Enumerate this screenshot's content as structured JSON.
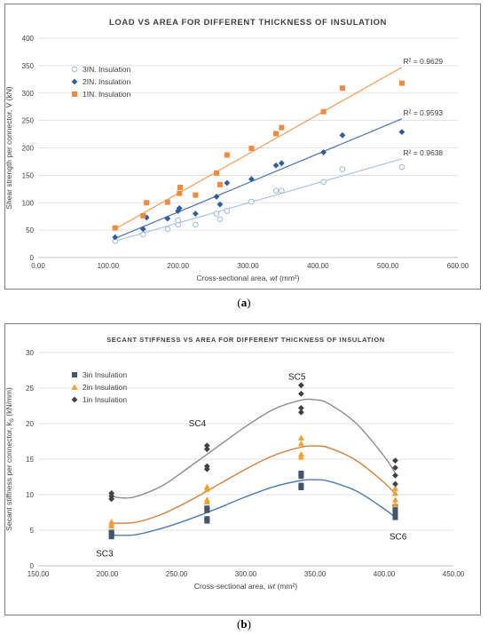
{
  "captions": [
    "a",
    "b"
  ],
  "chart_data": [
    {
      "type": "scatter",
      "title": "LOAD VS AREA FOR DIFFERENT THICKNESS OF INSULATION",
      "xlabel_main": "Cross-sectional area, ",
      "xlabel_var": "wt",
      "xlabel_unit": " (mm²)",
      "ylabel": "Shear strength per connector, V (kN)",
      "xlim": [
        0,
        600
      ],
      "ylim": [
        0,
        400
      ],
      "xticks": [
        0,
        100,
        200,
        300,
        400,
        500,
        600
      ],
      "xtick_labels": [
        "0.00",
        "100.00",
        "200.00",
        "300.00",
        "400.00",
        "500.00",
        "600.00"
      ],
      "yticks": [
        0,
        50,
        100,
        150,
        200,
        250,
        300,
        350,
        400
      ],
      "ytick_labels": [
        "0",
        "50",
        "100",
        "150",
        "200",
        "250",
        "300",
        "350",
        "400"
      ],
      "grid": "horizontal",
      "legend_position": "top-left",
      "series": [
        {
          "name": "3IN. Insulation",
          "marker": "open-circle",
          "color": "#9db9dc",
          "x": [
            110,
            150,
            185,
            200,
            200,
            225,
            255,
            260,
            270,
            305,
            340,
            348,
            408,
            435,
            520
          ],
          "y": [
            30,
            42,
            52,
            60,
            68,
            60,
            80,
            70,
            85,
            102,
            122,
            122,
            138,
            161,
            165
          ],
          "trend": [
            [
              110,
              30
            ],
            [
              520,
              180
            ]
          ],
          "r2_label": "R² = 0.9638",
          "r2_at": [
            522,
            186
          ]
        },
        {
          "name": "2IN. Insulation",
          "marker": "diamond",
          "color": "#2e5d9a",
          "x": [
            110,
            150,
            155,
            185,
            200,
            202,
            225,
            255,
            260,
            270,
            305,
            340,
            348,
            408,
            435,
            520
          ],
          "y": [
            37,
            52,
            73,
            71,
            85,
            90,
            80,
            111,
            97,
            136,
            143,
            168,
            172,
            192,
            223,
            229
          ],
          "trend": [
            [
              110,
              35
            ],
            [
              520,
              253
            ]
          ],
          "r2_label": "R² = 0.9593",
          "r2_at": [
            522,
            259
          ]
        },
        {
          "name": "1IN. Insulation",
          "marker": "square",
          "color": "#f08a3c",
          "x": [
            110,
            150,
            155,
            185,
            202,
            203,
            225,
            255,
            260,
            270,
            305,
            340,
            348,
            408,
            435,
            520
          ],
          "y": [
            54,
            76,
            100,
            101,
            117,
            128,
            114,
            154,
            133,
            187,
            199,
            226,
            237,
            266,
            309,
            318
          ],
          "trend": [
            [
              110,
              52
            ],
            [
              520,
              347
            ]
          ],
          "r2_label": "R² = 0.9629",
          "r2_at": [
            522,
            353
          ]
        }
      ]
    },
    {
      "type": "scatter",
      "title": "SECANT STIFFNESS VS AREA FOR DIFFERENT THICKNESS OF INSULATION",
      "xlabel_main": "Cross-sectional area, ",
      "xlabel_var": "wt",
      "xlabel_unit": " (mm²)",
      "ylabel": "Secant stiffness per connector, kS (kN/mm)",
      "ylabel_parts": [
        "Secant stiffness per connector, k",
        "S",
        " (kN/mm)"
      ],
      "xlim": [
        150,
        450
      ],
      "ylim": [
        0,
        30
      ],
      "xticks": [
        150,
        200,
        250,
        300,
        350,
        400,
        450
      ],
      "xtick_labels": [
        "150.00",
        "200.00",
        "250.00",
        "300.00",
        "350.00",
        "400.00",
        "450.00"
      ],
      "yticks": [
        0,
        5,
        10,
        15,
        20,
        25,
        30
      ],
      "ytick_labels": [
        "0",
        "5",
        "10",
        "15",
        "20",
        "25",
        "30"
      ],
      "grid": "horizontal",
      "legend_position": "top-left",
      "annotations": [
        {
          "text": "SC3",
          "x": 198,
          "y": 1.3
        },
        {
          "text": "SC4",
          "x": 265,
          "y": 19.6
        },
        {
          "text": "SC5",
          "x": 337,
          "y": 26.2
        },
        {
          "text": "SC6",
          "x": 410,
          "y": 3.7
        }
      ],
      "series": [
        {
          "name": "3in Insulation",
          "marker": "square",
          "color": "#44546a",
          "x": [
            203,
            203,
            203,
            272,
            272,
            272,
            272,
            340,
            340,
            340,
            340,
            408,
            408,
            408,
            408
          ],
          "y": [
            4.1,
            4.4,
            4.7,
            6.3,
            6.6,
            7.8,
            8.1,
            11.0,
            11.3,
            12.6,
            13.0,
            6.8,
            7.2,
            7.8,
            8.3
          ],
          "curve": [
            [
              203,
              4.3
            ],
            [
              220,
              4.35
            ],
            [
              240,
              5.3
            ],
            [
              260,
              6.6
            ],
            [
              280,
              8.1
            ],
            [
              300,
              9.7
            ],
            [
              320,
              11.1
            ],
            [
              340,
              12.0
            ],
            [
              350,
              12.1
            ],
            [
              360,
              11.9
            ],
            [
              380,
              10.5
            ],
            [
              400,
              8.0
            ],
            [
              408,
              6.8
            ]
          ]
        },
        {
          "name": "2in Insulation",
          "marker": "triangle",
          "color": "#f0a030",
          "x": [
            203,
            203,
            203,
            272,
            272,
            272,
            272,
            340,
            340,
            340,
            340,
            408,
            408,
            408,
            408
          ],
          "y": [
            5.6,
            5.9,
            6.2,
            9.0,
            9.3,
            10.8,
            11.1,
            15.3,
            15.7,
            17.2,
            18.0,
            8.6,
            9.3,
            10.2,
            10.9
          ],
          "curve": [
            [
              203,
              6.0
            ],
            [
              220,
              6.1
            ],
            [
              240,
              7.3
            ],
            [
              260,
              9.2
            ],
            [
              280,
              11.4
            ],
            [
              300,
              13.6
            ],
            [
              320,
              15.5
            ],
            [
              340,
              16.7
            ],
            [
              350,
              16.85
            ],
            [
              360,
              16.6
            ],
            [
              380,
              14.8
            ],
            [
              400,
              11.7
            ],
            [
              408,
              10.1
            ]
          ]
        },
        {
          "name": "1in Insulation",
          "marker": "diamond",
          "color": "#404040",
          "x": [
            203,
            203,
            203,
            272,
            272,
            272,
            272,
            340,
            340,
            340,
            340,
            408,
            408,
            408,
            408
          ],
          "y": [
            9.4,
            9.8,
            10.2,
            13.6,
            14.0,
            16.4,
            16.9,
            21.6,
            22.2,
            24.2,
            25.4,
            11.5,
            12.7,
            13.8,
            14.8
          ],
          "curve": [
            [
              203,
              9.8
            ],
            [
              210,
              9.55
            ],
            [
              220,
              9.7
            ],
            [
              240,
              11.3
            ],
            [
              260,
              14.0
            ],
            [
              280,
              16.8
            ],
            [
              300,
              19.6
            ],
            [
              320,
              22.0
            ],
            [
              340,
              23.3
            ],
            [
              350,
              23.35
            ],
            [
              360,
              22.8
            ],
            [
              380,
              20.0
            ],
            [
              400,
              15.4
            ],
            [
              408,
              13.0
            ]
          ]
        }
      ]
    }
  ]
}
